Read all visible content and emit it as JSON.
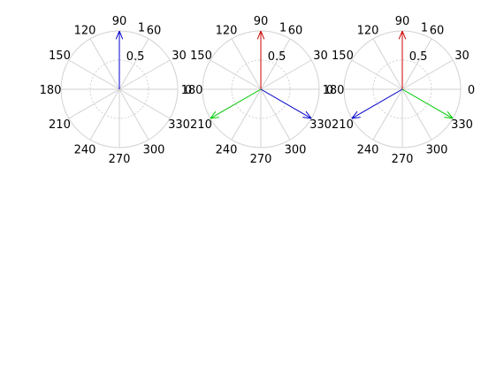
{
  "chart_data": [
    {
      "type": "polar-compass",
      "theta_ticks": [
        "0",
        "30",
        "60",
        "90",
        "120",
        "150",
        "180",
        "210",
        "240",
        "270",
        "300",
        "330"
      ],
      "theta_tick_values": [
        0,
        30,
        60,
        90,
        120,
        150,
        180,
        210,
        240,
        270,
        300,
        330
      ],
      "r_ticks": [
        "0.5",
        "1"
      ],
      "r_tick_values": [
        0.5,
        1
      ],
      "rlim": [
        0,
        1
      ],
      "grid": true,
      "vectors": [
        {
          "angle": 90,
          "magnitude": 1.0,
          "color": "#0000cc"
        }
      ]
    },
    {
      "type": "polar-compass",
      "theta_ticks": [
        "0",
        "30",
        "60",
        "90",
        "120",
        "150",
        "180",
        "210",
        "240",
        "270",
        "300",
        "330"
      ],
      "theta_tick_values": [
        0,
        30,
        60,
        90,
        120,
        150,
        180,
        210,
        240,
        270,
        300,
        330
      ],
      "r_ticks": [
        "0.5",
        "1"
      ],
      "r_tick_values": [
        0.5,
        1
      ],
      "rlim": [
        0,
        1
      ],
      "grid": true,
      "vectors": [
        {
          "angle": 90,
          "magnitude": 1.0,
          "color": "#cc0000"
        },
        {
          "angle": 330,
          "magnitude": 1.0,
          "color": "#0000cc"
        },
        {
          "angle": 210,
          "magnitude": 1.0,
          "color": "#00cc00"
        }
      ]
    },
    {
      "type": "polar-compass",
      "theta_ticks": [
        "0",
        "30",
        "60",
        "90",
        "120",
        "150",
        "180",
        "210",
        "240",
        "270",
        "300",
        "330"
      ],
      "theta_tick_values": [
        0,
        30,
        60,
        90,
        120,
        150,
        180,
        210,
        240,
        270,
        300,
        330
      ],
      "r_ticks": [
        "0.5",
        "1"
      ],
      "r_tick_values": [
        0.5,
        1
      ],
      "rlim": [
        0,
        1
      ],
      "grid": true,
      "vectors": [
        {
          "angle": 90,
          "magnitude": 1.0,
          "color": "#cc0000"
        },
        {
          "angle": 330,
          "magnitude": 1.0,
          "color": "#00cc00"
        },
        {
          "angle": 210,
          "magnitude": 1.0,
          "color": "#0000cc"
        }
      ]
    }
  ]
}
